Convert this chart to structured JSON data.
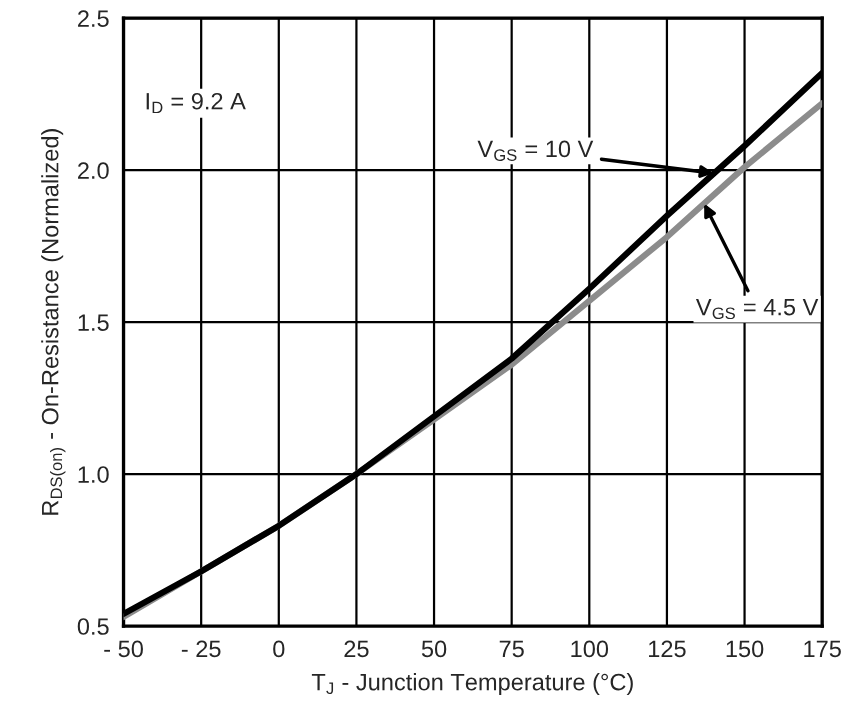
{
  "chart_data": {
    "type": "line",
    "xlabel": "T$_{J}$ - Junction Temperature (°C)",
    "ylabel": "R$_{DS(on)}$ - On-Resistance (Normalized)",
    "x": [
      -50,
      -25,
      0,
      25,
      50,
      75,
      100,
      125,
      150,
      175
    ],
    "series": [
      {
        "color": "#000000",
        "values": [
          0.54,
          0.68,
          0.83,
          1.0,
          1.19,
          1.38,
          1.61,
          1.85,
          2.08,
          2.32
        ]
      },
      {
        "color": "#8c8c8c",
        "values": [
          0.53,
          0.68,
          0.83,
          1.0,
          1.18,
          1.36,
          1.57,
          1.78,
          2.01,
          2.22
        ]
      }
    ],
    "xlim": [
      -50,
      175
    ],
    "xticks": [
      {
        "value": -50,
        "label": "- 50"
      },
      {
        "value": -25,
        "label": "- 25"
      },
      0,
      25,
      50,
      75,
      100,
      125,
      150,
      175
    ],
    "ylim": [
      0.5,
      2.5
    ],
    "yticks": [
      0.5,
      {
        "value": 1,
        "label": "1.0"
      },
      1.5,
      {
        "value": 2,
        "label": "2.0"
      },
      2.5
    ],
    "grid": true,
    "marker": "none",
    "line_style": "solid",
    "annotations": [
      "I$_{D}$ = 9.2 A",
      {
        "text": "V$_{GS}$ = 10 V",
        "x": 140,
        "y": 1.99
      },
      {
        "text": "V$_{GS}$ = 4.5 V",
        "x": 137,
        "y": 1.89
      }
    ]
  }
}
